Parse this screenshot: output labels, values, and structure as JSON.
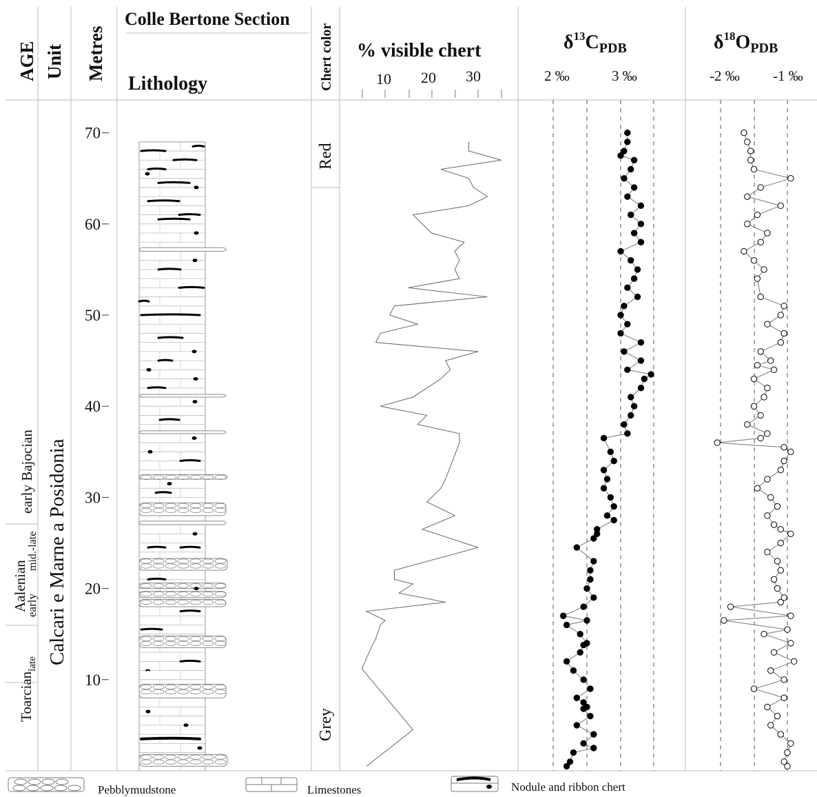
{
  "header": {
    "age": "AGE",
    "unit": "Unit",
    "metres": "Metres",
    "section_title": "Colle Bertone Section",
    "lithology": "Lithology",
    "chert_color": "Chert color",
    "chert_pct": "% visible chert",
    "c13": {
      "delta": "δ",
      "mass": "13",
      "sym": "C",
      "sub": "PDB"
    },
    "o18": {
      "delta": "δ",
      "mass": "18",
      "sym": "O",
      "sub": "PDB"
    }
  },
  "ticks": {
    "chert": [
      "10",
      "20",
      "30"
    ],
    "c13": [
      "2 ‰",
      "3 ‰"
    ],
    "o18": [
      "-2 ‰",
      "-1 ‰"
    ],
    "metres": [
      "10",
      "20",
      "30",
      "40",
      "50",
      "60",
      "70"
    ]
  },
  "age_labels": {
    "toarcian": "Toarcian",
    "toarcian_sub": "late",
    "aalenian": "Aalenian",
    "aalenian_early": "early",
    "aalenian_midlate": "mid.-late",
    "bajocian": "early Bajocian"
  },
  "unit_label": "Calcari e Marne a Posidonia",
  "chert_colors": {
    "top": "Red",
    "bottom": "Grey"
  },
  "legend": {
    "pebbly": "Pebblymudstone",
    "limestones": "Limestones",
    "chert": "Nodule and ribbon chert"
  },
  "chart_data": [
    {
      "type": "line",
      "name": "percent visible chert",
      "xlabel": "% visible chert",
      "ylabel": "Metres",
      "xlim": [
        5,
        36
      ],
      "ylim": [
        0,
        72
      ],
      "points": [
        [
          6,
          0.5
        ],
        [
          16,
          4.5
        ],
        [
          5,
          11.2
        ],
        [
          7,
          13.5
        ],
        [
          8,
          14.5
        ],
        [
          9,
          16
        ],
        [
          10,
          16.5
        ],
        [
          6,
          17.5
        ],
        [
          23,
          18.5
        ],
        [
          13,
          19.5
        ],
        [
          16,
          20.5
        ],
        [
          12,
          21
        ],
        [
          12,
          22
        ],
        [
          30,
          24.5
        ],
        [
          18,
          26.5
        ],
        [
          25,
          28
        ],
        [
          19,
          29.5
        ],
        [
          22,
          31
        ],
        [
          23,
          32
        ],
        [
          26,
          36
        ],
        [
          26,
          37
        ],
        [
          17,
          38
        ],
        [
          19,
          39
        ],
        [
          9,
          40
        ],
        [
          16,
          41
        ],
        [
          22,
          43
        ],
        [
          24,
          44
        ],
        [
          23,
          45
        ],
        [
          30,
          46
        ],
        [
          8,
          47
        ],
        [
          9,
          48
        ],
        [
          17,
          49
        ],
        [
          11,
          50
        ],
        [
          12,
          51
        ],
        [
          32,
          52
        ],
        [
          15,
          53
        ],
        [
          26,
          54
        ],
        [
          25,
          55
        ],
        [
          26,
          56
        ],
        [
          25,
          57
        ],
        [
          27,
          58
        ],
        [
          20,
          59
        ],
        [
          16,
          61
        ],
        [
          28,
          62
        ],
        [
          32,
          63
        ],
        [
          29,
          64
        ],
        [
          28,
          65
        ],
        [
          22,
          66
        ],
        [
          35,
          67
        ],
        [
          28,
          68
        ],
        [
          28,
          69
        ]
      ]
    },
    {
      "type": "line",
      "name": "d13C",
      "xlabel": "δ13C PDB",
      "xlim": [
        1.7,
        3.5
      ],
      "ylim": [
        0,
        72
      ],
      "points": [
        [
          2.2,
          0.5
        ],
        [
          2.25,
          1
        ],
        [
          2.3,
          2
        ],
        [
          2.6,
          2.5
        ],
        [
          2.45,
          3
        ],
        [
          2.6,
          4
        ],
        [
          2.35,
          5
        ],
        [
          2.55,
          6
        ],
        [
          2.45,
          6.8
        ],
        [
          2.5,
          7
        ],
        [
          2.45,
          7.5
        ],
        [
          2.35,
          8
        ],
        [
          2.55,
          9
        ],
        [
          2.45,
          10
        ],
        [
          2.3,
          11
        ],
        [
          2.2,
          12
        ],
        [
          2.4,
          13
        ],
        [
          2.45,
          13.8
        ],
        [
          2.5,
          14
        ],
        [
          2.4,
          15
        ],
        [
          2.2,
          16
        ],
        [
          2.5,
          16.5
        ],
        [
          2.15,
          17
        ],
        [
          2.45,
          18
        ],
        [
          2.6,
          19
        ],
        [
          2.5,
          20
        ],
        [
          2.55,
          21
        ],
        [
          2.55,
          22
        ],
        [
          2.6,
          23
        ],
        [
          2.35,
          24.5
        ],
        [
          2.6,
          25.5
        ],
        [
          2.65,
          26
        ],
        [
          2.65,
          26.5
        ],
        [
          2.9,
          27.5
        ],
        [
          2.8,
          28
        ],
        [
          2.9,
          29
        ],
        [
          2.85,
          30
        ],
        [
          2.75,
          31
        ],
        [
          2.8,
          32
        ],
        [
          2.75,
          33
        ],
        [
          2.9,
          34
        ],
        [
          2.85,
          35
        ],
        [
          2.75,
          36.5
        ],
        [
          3.1,
          37
        ],
        [
          3.05,
          38
        ],
        [
          3.15,
          39
        ],
        [
          3.2,
          40
        ],
        [
          3.15,
          41
        ],
        [
          3.3,
          42
        ],
        [
          3.35,
          43
        ],
        [
          3.45,
          43.5
        ],
        [
          3.1,
          44
        ],
        [
          3.3,
          45
        ],
        [
          3.05,
          46
        ],
        [
          3.3,
          47
        ],
        [
          3,
          48
        ],
        [
          3.1,
          49
        ],
        [
          3,
          50
        ],
        [
          3.05,
          51
        ],
        [
          3.25,
          52
        ],
        [
          3.1,
          53
        ],
        [
          3.2,
          54
        ],
        [
          3.25,
          55
        ],
        [
          3.15,
          56
        ],
        [
          3,
          57
        ],
        [
          3.3,
          58
        ],
        [
          3.2,
          59
        ],
        [
          3.3,
          60
        ],
        [
          3.15,
          61
        ],
        [
          3.3,
          62
        ],
        [
          3.1,
          63
        ],
        [
          3.2,
          64
        ],
        [
          3.05,
          65
        ],
        [
          3.15,
          66
        ],
        [
          3.2,
          67
        ],
        [
          3,
          67.5
        ],
        [
          3.05,
          68
        ],
        [
          3.1,
          69
        ],
        [
          3.1,
          70
        ]
      ]
    },
    {
      "type": "line",
      "name": "d18O",
      "xlabel": "δ18O PDB",
      "xlim": [
        -2.3,
        -0.7
      ],
      "ylim": [
        0,
        72
      ],
      "points": [
        [
          -1.0,
          0.5
        ],
        [
          -1.05,
          1
        ],
        [
          -1.0,
          2
        ],
        [
          -0.95,
          3
        ],
        [
          -1.1,
          4
        ],
        [
          -1.25,
          5
        ],
        [
          -1.15,
          6
        ],
        [
          -1.3,
          7
        ],
        [
          -1.05,
          8
        ],
        [
          -1.5,
          9
        ],
        [
          -1.05,
          10
        ],
        [
          -1.25,
          11
        ],
        [
          -0.9,
          12
        ],
        [
          -1.2,
          13
        ],
        [
          -0.95,
          14
        ],
        [
          -1.35,
          15
        ],
        [
          -1.0,
          15.5
        ],
        [
          -1.95,
          16.5
        ],
        [
          -0.95,
          17
        ],
        [
          -1.85,
          18
        ],
        [
          -1.1,
          18.5
        ],
        [
          -1.05,
          19
        ],
        [
          -1.15,
          20
        ],
        [
          -1.2,
          21
        ],
        [
          -1.1,
          22
        ],
        [
          -1.15,
          23
        ],
        [
          -1.3,
          24
        ],
        [
          -1.1,
          25
        ],
        [
          -0.95,
          26
        ],
        [
          -1.1,
          26.5
        ],
        [
          -1.2,
          27
        ],
        [
          -1.3,
          28
        ],
        [
          -1.15,
          29
        ],
        [
          -1.25,
          30
        ],
        [
          -1.45,
          31
        ],
        [
          -1.3,
          32
        ],
        [
          -1.1,
          33
        ],
        [
          -1.05,
          34
        ],
        [
          -0.95,
          35
        ],
        [
          -1.05,
          35.5
        ],
        [
          -2.05,
          36
        ],
        [
          -1.4,
          36.5
        ],
        [
          -1.3,
          37
        ],
        [
          -1.6,
          38
        ],
        [
          -1.4,
          39
        ],
        [
          -1.5,
          40
        ],
        [
          -1.35,
          41
        ],
        [
          -1.3,
          42
        ],
        [
          -1.5,
          43
        ],
        [
          -1.2,
          44
        ],
        [
          -1.45,
          44.5
        ],
        [
          -1.25,
          45
        ],
        [
          -1.4,
          46
        ],
        [
          -1.1,
          47
        ],
        [
          -1.05,
          48
        ],
        [
          -1.3,
          49
        ],
        [
          -1.1,
          50
        ],
        [
          -1.05,
          51
        ],
        [
          -1.4,
          52
        ],
        [
          -1.45,
          54
        ],
        [
          -1.35,
          55
        ],
        [
          -1.5,
          56
        ],
        [
          -1.65,
          57
        ],
        [
          -1.4,
          58
        ],
        [
          -1.3,
          59
        ],
        [
          -1.6,
          60
        ],
        [
          -1.45,
          61
        ],
        [
          -1.1,
          62
        ],
        [
          -1.6,
          63
        ],
        [
          -1.4,
          64
        ],
        [
          -0.95,
          65
        ],
        [
          -1.5,
          66
        ],
        [
          -1.55,
          67
        ],
        [
          -1.55,
          68
        ],
        [
          -1.6,
          69
        ],
        [
          -1.65,
          70
        ]
      ]
    }
  ]
}
